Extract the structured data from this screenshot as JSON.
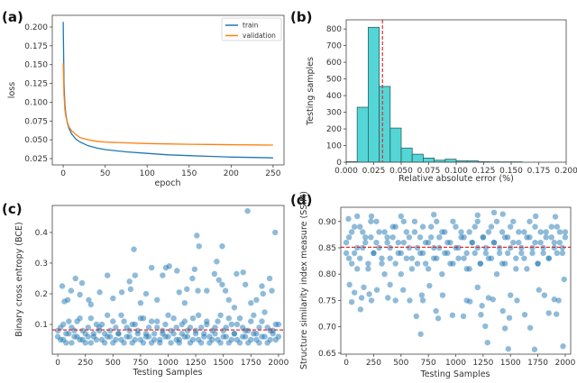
{
  "colors": {
    "train": "#1f77b4",
    "validation": "#ff7f0e",
    "hist_fill": "#55d6d6",
    "hist_edge": "#2b5e62",
    "mean_line": "#e03030",
    "scatter": "#1f77b4"
  },
  "chart_data": [
    {
      "panel_label": "(a)",
      "type": "line",
      "xlabel": "epoch",
      "ylabel": "loss",
      "xlim": [
        -13,
        263
      ],
      "ylim": [
        0.0166,
        0.2156
      ],
      "xticks": [
        0,
        50,
        100,
        150,
        200,
        250
      ],
      "xtick_labels": [
        "0",
        "50",
        "100",
        "150",
        "200",
        "250"
      ],
      "yticks": [
        0.025,
        0.05,
        0.075,
        0.1,
        0.125,
        0.15,
        0.175,
        0.2
      ],
      "ytick_labels": [
        "0.025",
        "0.050",
        "0.075",
        "0.100",
        "0.125",
        "0.150",
        "0.175",
        "0.200"
      ],
      "legend": "top-right",
      "series": [
        {
          "name": "train",
          "x": [
            0,
            1,
            2,
            3,
            5,
            7,
            10,
            15,
            20,
            30,
            40,
            50,
            75,
            100,
            125,
            150,
            175,
            200,
            225,
            250
          ],
          "y": [
            0.207,
            0.125,
            0.097,
            0.085,
            0.072,
            0.065,
            0.058,
            0.051,
            0.047,
            0.042,
            0.039,
            0.037,
            0.034,
            0.032,
            0.03,
            0.029,
            0.028,
            0.027,
            0.0265,
            0.026
          ]
        },
        {
          "name": "validation",
          "x": [
            0,
            1,
            2,
            3,
            5,
            7,
            10,
            15,
            20,
            30,
            40,
            50,
            75,
            100,
            125,
            150,
            175,
            200,
            225,
            250
          ],
          "y": [
            0.152,
            0.11,
            0.09,
            0.082,
            0.073,
            0.067,
            0.062,
            0.057,
            0.053,
            0.05,
            0.048,
            0.047,
            0.046,
            0.045,
            0.0445,
            0.044,
            0.0438,
            0.0435,
            0.0432,
            0.043
          ]
        }
      ]
    },
    {
      "panel_label": "(b)",
      "type": "bar",
      "xlabel": "Relative absolute error (%)",
      "ylabel": "Testing samples",
      "xlim": [
        0,
        0.2
      ],
      "ylim": [
        0,
        855
      ],
      "xticks": [
        0,
        0.025,
        0.05,
        0.075,
        0.1,
        0.125,
        0.15,
        0.175,
        0.2
      ],
      "xtick_labels": [
        "0.000",
        "0.025",
        "0.050",
        "0.075",
        "0.100",
        "0.125",
        "0.150",
        "0.175",
        "0.200"
      ],
      "yticks": [
        0,
        100,
        200,
        300,
        400,
        500,
        600,
        700,
        800
      ],
      "ytick_labels": [
        "0",
        "100",
        "200",
        "300",
        "400",
        "500",
        "600",
        "700",
        "800"
      ],
      "bin_edges": [
        0.0,
        0.01,
        0.02,
        0.03,
        0.04,
        0.05,
        0.06,
        0.07,
        0.08,
        0.09,
        0.1,
        0.11,
        0.12,
        0.13,
        0.14,
        0.15,
        0.16
      ],
      "counts": [
        3,
        330,
        810,
        455,
        205,
        85,
        48,
        25,
        12,
        18,
        8,
        8,
        3,
        2,
        2,
        2
      ],
      "mean_line": 0.033
    },
    {
      "panel_label": "(c)",
      "type": "scatter",
      "xlabel": "Testing Samples",
      "ylabel": "Binary cross entropy (BCE)",
      "xlim": [
        -50,
        2050
      ],
      "ylim": [
        0.003,
        0.488
      ],
      "xticks": [
        0,
        250,
        500,
        750,
        1000,
        1250,
        1500,
        1750,
        2000
      ],
      "xtick_labels": [
        "0",
        "250",
        "500",
        "750",
        "1000",
        "1250",
        "1500",
        "1750",
        "2000"
      ],
      "yticks": [
        0.1,
        0.2,
        0.3,
        0.4
      ],
      "ytick_labels": [
        "0.1",
        "0.2",
        "0.3",
        "0.4"
      ],
      "mean_line": 0.082,
      "band": {
        "x": [
          0,
          25,
          50,
          75,
          100,
          125,
          150,
          175,
          200,
          225,
          250,
          275,
          300,
          325,
          350,
          375,
          400,
          425,
          450,
          475,
          500,
          525,
          550,
          575,
          600,
          625,
          650,
          675,
          700,
          725,
          750,
          775,
          800,
          825,
          850,
          875,
          900,
          925,
          950,
          975,
          1000,
          1025,
          1050,
          1075,
          1100,
          1125,
          1150,
          1175,
          1200,
          1225,
          1250,
          1275,
          1300,
          1325,
          1350,
          1375,
          1400,
          1425,
          1450,
          1475,
          1500,
          1525,
          1550,
          1575,
          1600,
          1625,
          1650,
          1675,
          1700,
          1725,
          1750,
          1775,
          1800,
          1825,
          1850,
          1875,
          1900,
          1925,
          1950,
          1975,
          2000
        ],
        "y_a": [
          0.06,
          0.09,
          0.05,
          0.07,
          0.11,
          0.04,
          0.08,
          0.06,
          0.12,
          0.05,
          0.07,
          0.09,
          0.04,
          0.06,
          0.1,
          0.08,
          0.05,
          0.07,
          0.13,
          0.06,
          0.04,
          0.09,
          0.07,
          0.05,
          0.11,
          0.06,
          0.08,
          0.04,
          0.1,
          0.07,
          0.05,
          0.12,
          0.06,
          0.09,
          0.04,
          0.07,
          0.11,
          0.05,
          0.08,
          0.06,
          0.13,
          0.04,
          0.07,
          0.09,
          0.05,
          0.1,
          0.06,
          0.08,
          0.04,
          0.12,
          0.07,
          0.05,
          0.09,
          0.06,
          0.11,
          0.04,
          0.08,
          0.07,
          0.05,
          0.13,
          0.06,
          0.09,
          0.04,
          0.1,
          0.07,
          0.05,
          0.12,
          0.06,
          0.08,
          0.04,
          0.11,
          0.07,
          0.05,
          0.09,
          0.06,
          0.14,
          0.04,
          0.08,
          0.07,
          0.05,
          0.1
        ],
        "y_b": [
          0.08,
          0.05,
          0.1,
          0.04,
          0.07,
          0.09,
          0.06,
          0.11,
          0.05,
          0.08,
          0.04,
          0.06,
          0.12,
          0.07,
          0.05,
          0.09,
          0.1,
          0.04,
          0.06,
          0.08,
          0.11,
          0.05,
          0.07,
          0.13,
          0.04,
          0.09,
          0.06,
          0.1,
          0.05,
          0.08,
          0.12,
          0.04,
          0.07,
          0.06,
          0.11,
          0.05,
          0.09,
          0.04,
          0.07,
          0.1,
          0.06,
          0.08,
          0.12,
          0.05,
          0.04,
          0.07,
          0.11,
          0.06,
          0.09,
          0.05,
          0.08,
          0.13,
          0.04,
          0.07,
          0.1,
          0.06,
          0.05,
          0.09,
          0.11,
          0.04,
          0.08,
          0.06,
          0.12,
          0.05,
          0.07,
          0.1,
          0.04,
          0.09,
          0.06,
          0.08,
          0.05,
          0.13,
          0.07,
          0.04,
          0.11,
          0.06,
          0.09,
          0.05,
          0.08,
          0.1,
          0.06
        ]
      },
      "points": [
        [
          40,
          0.225
        ],
        [
          160,
          0.25
        ],
        [
          220,
          0.235
        ],
        [
          120,
          0.21
        ],
        [
          200,
          0.197
        ],
        [
          60,
          0.175
        ],
        [
          90,
          0.18
        ],
        [
          280,
          0.18
        ],
        [
          380,
          0.205
        ],
        [
          450,
          0.26
        ],
        [
          500,
          0.185
        ],
        [
          580,
          0.205
        ],
        [
          650,
          0.24
        ],
        [
          690,
          0.345
        ],
        [
          700,
          0.26
        ],
        [
          660,
          0.215
        ],
        [
          800,
          0.2
        ],
        [
          850,
          0.285
        ],
        [
          950,
          0.26
        ],
        [
          980,
          0.285
        ],
        [
          1010,
          0.29
        ],
        [
          1080,
          0.275
        ],
        [
          1100,
          0.205
        ],
        [
          1170,
          0.215
        ],
        [
          1220,
          0.25
        ],
        [
          1240,
          0.28
        ],
        [
          1260,
          0.39
        ],
        [
          1280,
          0.355
        ],
        [
          1270,
          0.21
        ],
        [
          1350,
          0.21
        ],
        [
          1420,
          0.265
        ],
        [
          1440,
          0.305
        ],
        [
          1460,
          0.245
        ],
        [
          1490,
          0.355
        ],
        [
          1490,
          0.23
        ],
        [
          1520,
          0.21
        ],
        [
          1620,
          0.265
        ],
        [
          1680,
          0.27
        ],
        [
          1700,
          0.23
        ],
        [
          1720,
          0.47
        ],
        [
          1750,
          0.17
        ],
        [
          1850,
          0.225
        ],
        [
          1860,
          0.2
        ],
        [
          1920,
          0.25
        ],
        [
          1970,
          0.4
        ],
        [
          1940,
          0.21
        ],
        [
          1800,
          0.18
        ],
        [
          300,
          0.165
        ],
        [
          750,
          0.17
        ],
        [
          900,
          0.18
        ],
        [
          1150,
          0.17
        ],
        [
          1550,
          0.18
        ],
        [
          1600,
          0.155
        ]
      ]
    },
    {
      "panel_label": "(d)",
      "type": "scatter",
      "xlabel": "Testing Samples",
      "ylabel": "Structure similarity index measure (SSIM)",
      "xlim": [
        -50,
        2050
      ],
      "ylim": [
        0.648,
        0.927
      ],
      "xticks": [
        0,
        250,
        500,
        750,
        1000,
        1250,
        1500,
        1750,
        2000
      ],
      "xtick_labels": [
        "0",
        "250",
        "500",
        "750",
        "1000",
        "1250",
        "1500",
        "1750",
        "2000"
      ],
      "yticks": [
        0.65,
        0.7,
        0.75,
        0.8,
        0.85,
        0.9
      ],
      "ytick_labels": [
        "0.65",
        "0.70",
        "0.75",
        "0.80",
        "0.85",
        "0.90"
      ],
      "mean_line": 0.851,
      "band": {
        "x": [
          0,
          25,
          50,
          75,
          100,
          125,
          150,
          175,
          200,
          225,
          250,
          275,
          300,
          325,
          350,
          375,
          400,
          425,
          450,
          475,
          500,
          525,
          550,
          575,
          600,
          625,
          650,
          675,
          700,
          725,
          750,
          775,
          800,
          825,
          850,
          875,
          900,
          925,
          950,
          975,
          1000,
          1025,
          1050,
          1075,
          1100,
          1125,
          1150,
          1175,
          1200,
          1225,
          1250,
          1275,
          1300,
          1325,
          1350,
          1375,
          1400,
          1425,
          1450,
          1475,
          1500,
          1525,
          1550,
          1575,
          1600,
          1625,
          1650,
          1675,
          1700,
          1725,
          1750,
          1775,
          1800,
          1825,
          1850,
          1875,
          1900,
          1925,
          1950,
          1975,
          2000
        ],
        "y_a": [
          0.86,
          0.83,
          0.88,
          0.84,
          0.81,
          0.89,
          0.85,
          0.87,
          0.82,
          0.9,
          0.84,
          0.86,
          0.88,
          0.83,
          0.8,
          0.87,
          0.85,
          0.89,
          0.82,
          0.86,
          0.84,
          0.9,
          0.83,
          0.87,
          0.81,
          0.88,
          0.85,
          0.84,
          0.89,
          0.82,
          0.86,
          0.87,
          0.83,
          0.9,
          0.85,
          0.8,
          0.88,
          0.84,
          0.86,
          0.82,
          0.89,
          0.85,
          0.87,
          0.83,
          0.81,
          0.88,
          0.86,
          0.84,
          0.9,
          0.82,
          0.87,
          0.85,
          0.83,
          0.89,
          0.86,
          0.8,
          0.84,
          0.88,
          0.82,
          0.87,
          0.85,
          0.9,
          0.83,
          0.86,
          0.84,
          0.88,
          0.81,
          0.87,
          0.85,
          0.89,
          0.82,
          0.86,
          0.84,
          0.88,
          0.83,
          0.87,
          0.85,
          0.89,
          0.86,
          0.84,
          0.88
        ],
        "y_b": [
          0.84,
          0.87,
          0.82,
          0.89,
          0.85,
          0.83,
          0.88,
          0.86,
          0.81,
          0.87,
          0.84,
          0.9,
          0.85,
          0.82,
          0.88,
          0.86,
          0.83,
          0.87,
          0.89,
          0.84,
          0.8,
          0.86,
          0.88,
          0.85,
          0.83,
          0.9,
          0.82,
          0.87,
          0.84,
          0.86,
          0.81,
          0.89,
          0.85,
          0.83,
          0.87,
          0.88,
          0.84,
          0.86,
          0.82,
          0.9,
          0.85,
          0.83,
          0.88,
          0.87,
          0.84,
          0.81,
          0.86,
          0.89,
          0.85,
          0.82,
          0.87,
          0.84,
          0.88,
          0.83,
          0.86,
          0.9,
          0.85,
          0.82,
          0.87,
          0.84,
          0.89,
          0.86,
          0.81,
          0.88,
          0.85,
          0.83,
          0.87,
          0.9,
          0.84,
          0.86,
          0.82,
          0.88,
          0.85,
          0.87,
          0.83,
          0.89,
          0.86,
          0.84,
          0.88,
          0.85,
          0.87
        ]
      },
      "points": [
        [
          130,
          0.733
        ],
        [
          50,
          0.747
        ],
        [
          75,
          0.765
        ],
        [
          30,
          0.78
        ],
        [
          140,
          0.755
        ],
        [
          160,
          0.775
        ],
        [
          210,
          0.762
        ],
        [
          230,
          0.75
        ],
        [
          280,
          0.77
        ],
        [
          380,
          0.755
        ],
        [
          400,
          0.78
        ],
        [
          450,
          0.75
        ],
        [
          520,
          0.77
        ],
        [
          580,
          0.75
        ],
        [
          640,
          0.72
        ],
        [
          680,
          0.686
        ],
        [
          690,
          0.76
        ],
        [
          700,
          0.75
        ],
        [
          760,
          0.778
        ],
        [
          820,
          0.73
        ],
        [
          840,
          0.716
        ],
        [
          880,
          0.76
        ],
        [
          970,
          0.722
        ],
        [
          1070,
          0.72
        ],
        [
          1100,
          0.75
        ],
        [
          1130,
          0.748
        ],
        [
          1200,
          0.775
        ],
        [
          1230,
          0.723
        ],
        [
          1240,
          0.74
        ],
        [
          1270,
          0.701
        ],
        [
          1290,
          0.67
        ],
        [
          1300,
          0.755
        ],
        [
          1340,
          0.752
        ],
        [
          1430,
          0.73
        ],
        [
          1450,
          0.697
        ],
        [
          1480,
          0.658
        ],
        [
          1490,
          0.717
        ],
        [
          1500,
          0.76
        ],
        [
          1560,
          0.75
        ],
        [
          1630,
          0.723
        ],
        [
          1680,
          0.698
        ],
        [
          1720,
          0.657
        ],
        [
          1760,
          0.77
        ],
        [
          1810,
          0.76
        ],
        [
          1850,
          0.726
        ],
        [
          1900,
          0.752
        ],
        [
          1920,
          0.724
        ],
        [
          1940,
          0.75
        ],
        [
          1980,
          0.663
        ],
        [
          1990,
          0.79
        ],
        [
          20,
          0.905
        ],
        [
          100,
          0.91
        ],
        [
          230,
          0.91
        ],
        [
          500,
          0.91
        ],
        [
          800,
          0.913
        ],
        [
          1200,
          0.912
        ],
        [
          1350,
          0.917
        ],
        [
          1430,
          0.914
        ],
        [
          1730,
          0.91
        ],
        [
          1910,
          0.909
        ]
      ]
    }
  ]
}
